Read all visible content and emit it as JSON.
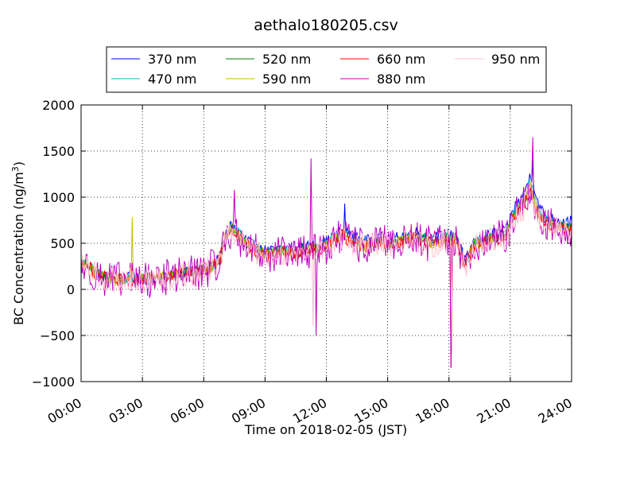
{
  "chart_data": {
    "type": "line",
    "title": "aethalo180205.csv",
    "xlabel": "Time on 2018-02-05 (JST)",
    "ylabel": "BC Concentration (ng/m",
    "ylabel_sup": "3",
    "ylabel_close": ")",
    "xlim": [
      "00:00",
      "24:00"
    ],
    "ylim": [
      -1000,
      2000
    ],
    "x_ticks": [
      "00:00",
      "03:00",
      "06:00",
      "09:00",
      "12:00",
      "15:00",
      "18:00",
      "21:00",
      "24:00"
    ],
    "y_ticks": [
      -1000,
      -500,
      0,
      500,
      1000,
      1500,
      2000
    ],
    "y_tick_labels": [
      "−1000",
      "−500",
      "0",
      "500",
      "1000",
      "1500",
      "2000"
    ],
    "grid": true,
    "legend_position": "top-center",
    "time_keys_hours": [
      0.0,
      0.4,
      0.8,
      1.2,
      1.6,
      2.0,
      2.4,
      2.8,
      3.2,
      3.6,
      4.0,
      4.4,
      4.8,
      5.2,
      5.6,
      6.0,
      6.4,
      6.8,
      7.0,
      7.3,
      7.6,
      8.0,
      8.4,
      8.8,
      9.2,
      9.6,
      10.0,
      10.4,
      10.8,
      11.2,
      11.6,
      12.0,
      12.4,
      12.8,
      13.2,
      13.6,
      14.0,
      14.4,
      14.8,
      15.2,
      15.6,
      16.0,
      16.4,
      16.8,
      17.2,
      17.6,
      18.0,
      18.4,
      18.8,
      19.2,
      19.6,
      20.0,
      20.4,
      20.8,
      21.2,
      21.6,
      22.0,
      22.4,
      22.8,
      23.2,
      23.6,
      24.0
    ],
    "series": [
      {
        "name": "370 nm",
        "color": "#0000ff",
        "noise": 60,
        "values": [
          300,
          260,
          180,
          140,
          120,
          110,
          130,
          120,
          110,
          130,
          150,
          160,
          180,
          190,
          200,
          220,
          260,
          350,
          550,
          700,
          650,
          560,
          480,
          430,
          420,
          430,
          460,
          420,
          450,
          470,
          480,
          520,
          580,
          650,
          600,
          550,
          530,
          560,
          570,
          540,
          580,
          600,
          620,
          580,
          560,
          580,
          600,
          580,
          300,
          520,
          560,
          600,
          620,
          640,
          900,
          1000,
          1250,
          900,
          780,
          760,
          740,
          740
        ]
      },
      {
        "name": "470 nm",
        "color": "#00bfbf",
        "noise": 60,
        "values": [
          290,
          250,
          170,
          130,
          115,
          105,
          125,
          115,
          105,
          125,
          145,
          155,
          175,
          185,
          195,
          215,
          255,
          340,
          540,
          680,
          630,
          540,
          460,
          410,
          400,
          410,
          440,
          400,
          430,
          450,
          460,
          500,
          560,
          620,
          570,
          520,
          500,
          530,
          540,
          510,
          550,
          570,
          590,
          550,
          530,
          550,
          570,
          550,
          280,
          500,
          530,
          570,
          590,
          610,
          860,
          950,
          1180,
          850,
          740,
          720,
          700,
          700
        ]
      },
      {
        "name": "520 nm",
        "color": "#008000",
        "noise": 60,
        "values": [
          280,
          240,
          165,
          125,
          110,
          100,
          120,
          110,
          100,
          120,
          140,
          150,
          170,
          180,
          190,
          210,
          250,
          330,
          530,
          660,
          610,
          520,
          450,
          400,
          390,
          400,
          430,
          390,
          420,
          440,
          450,
          490,
          540,
          600,
          550,
          500,
          480,
          510,
          520,
          490,
          530,
          550,
          570,
          530,
          510,
          530,
          550,
          530,
          270,
          490,
          510,
          550,
          570,
          590,
          830,
          920,
          1120,
          820,
          720,
          700,
          680,
          680
        ]
      },
      {
        "name": "590 nm",
        "color": "#bfbf00",
        "noise": 60,
        "values": [
          275,
          235,
          160,
          120,
          108,
          98,
          118,
          108,
          98,
          118,
          138,
          148,
          168,
          178,
          188,
          208,
          248,
          325,
          525,
          650,
          600,
          515,
          445,
          395,
          385,
          395,
          425,
          385,
          415,
          435,
          445,
          485,
          535,
          590,
          540,
          495,
          475,
          505,
          515,
          485,
          525,
          545,
          565,
          525,
          505,
          525,
          545,
          525,
          265,
          485,
          505,
          545,
          565,
          585,
          820,
          910,
          1100,
          810,
          710,
          690,
          670,
          670
        ]
      },
      {
        "name": "660 nm",
        "color": "#ff0000",
        "noise": 80,
        "values": [
          270,
          230,
          155,
          115,
          105,
          95,
          115,
          105,
          95,
          115,
          135,
          145,
          165,
          175,
          185,
          205,
          245,
          320,
          520,
          640,
          590,
          510,
          440,
          390,
          380,
          390,
          420,
          380,
          410,
          430,
          440,
          480,
          530,
          580,
          530,
          490,
          470,
          500,
          510,
          480,
          520,
          540,
          560,
          520,
          500,
          520,
          540,
          520,
          260,
          480,
          500,
          540,
          560,
          580,
          810,
          900,
          1080,
          800,
          700,
          680,
          660,
          660
        ]
      },
      {
        "name": "880 nm",
        "color": "#bf00bf",
        "noise": 200,
        "values": [
          260,
          220,
          150,
          110,
          100,
          90,
          110,
          100,
          90,
          110,
          130,
          140,
          160,
          170,
          180,
          200,
          240,
          310,
          510,
          630,
          580,
          500,
          430,
          380,
          370,
          380,
          410,
          370,
          400,
          420,
          430,
          470,
          520,
          570,
          520,
          480,
          460,
          490,
          500,
          470,
          510,
          530,
          550,
          510,
          490,
          510,
          530,
          510,
          250,
          470,
          490,
          530,
          550,
          570,
          800,
          890,
          1060,
          790,
          690,
          670,
          650,
          650
        ]
      },
      {
        "name": "950 nm",
        "color": "#ffc0cb",
        "noise": 140,
        "values": [
          255,
          215,
          148,
          108,
          98,
          88,
          108,
          98,
          88,
          108,
          128,
          138,
          158,
          168,
          178,
          198,
          238,
          305,
          505,
          620,
          575,
          495,
          425,
          375,
          365,
          375,
          405,
          365,
          395,
          415,
          425,
          465,
          515,
          565,
          515,
          475,
          455,
          485,
          495,
          465,
          505,
          525,
          545,
          505,
          485,
          505,
          525,
          505,
          245,
          465,
          485,
          525,
          545,
          565,
          790,
          880,
          1050,
          780,
          680,
          660,
          640,
          640
        ]
      }
    ],
    "notable_spikes": [
      {
        "series": "880 nm",
        "time": "11:15",
        "value": 1420
      },
      {
        "series": "880 nm",
        "time": "11:30",
        "value": -500
      },
      {
        "series": "950 nm",
        "time": "11:20",
        "value": -400
      },
      {
        "series": "590 nm",
        "time": "02:30",
        "value": 780
      },
      {
        "series": "660 nm",
        "time": "18:05",
        "value": -850
      },
      {
        "series": "880 nm",
        "time": "18:05",
        "value": -850
      },
      {
        "series": "950 nm",
        "time": "18:10",
        "value": -700
      },
      {
        "series": "880 nm",
        "time": "22:05",
        "value": 1650
      },
      {
        "series": "370 nm",
        "time": "22:05",
        "value": 1400
      },
      {
        "series": "370 nm",
        "time": "12:55",
        "value": 930
      },
      {
        "series": "880 nm",
        "time": "07:30",
        "value": 1080
      }
    ]
  }
}
